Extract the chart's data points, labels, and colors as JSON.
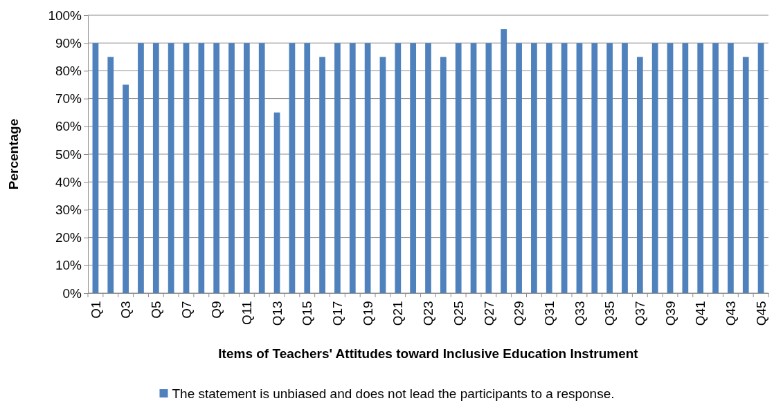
{
  "chart_data": {
    "type": "bar",
    "xlabel": "Items of Teachers' Attitudes toward Inclusive Education Instrument",
    "ylabel": "Percentage",
    "categories": [
      "Q1",
      null,
      "Q3",
      null,
      "Q5",
      null,
      "Q7",
      null,
      "Q9",
      null,
      "Q11",
      null,
      "Q13",
      null,
      "Q15",
      null,
      "Q17",
      null,
      "Q19",
      null,
      "Q21",
      null,
      "Q23",
      null,
      "Q25",
      null,
      "Q27",
      null,
      "Q29",
      null,
      "Q31",
      null,
      "Q33",
      null,
      "Q35",
      null,
      "Q37",
      null,
      "Q39",
      null,
      "Q41",
      null,
      "Q43",
      null,
      "Q45"
    ],
    "series": [
      {
        "name": "The statement is unbiased and does not lead the participants to a response.",
        "color": "#4f81bd",
        "values": [
          90,
          85,
          75,
          90,
          90,
          90,
          90,
          90,
          90,
          90,
          90,
          90,
          65,
          90,
          90,
          85,
          90,
          90,
          90,
          85,
          90,
          90,
          90,
          85,
          90,
          90,
          90,
          95,
          90,
          90,
          90,
          90,
          90,
          90,
          90,
          90,
          85,
          90,
          90,
          90,
          90,
          90,
          90,
          85,
          90
        ]
      }
    ],
    "ylim": [
      0,
      100
    ],
    "yticks": [
      {
        "value": 0,
        "label": "0%"
      },
      {
        "value": 10,
        "label": "10%"
      },
      {
        "value": 20,
        "label": "20%"
      },
      {
        "value": 30,
        "label": "30%"
      },
      {
        "value": 40,
        "label": "40%"
      },
      {
        "value": 50,
        "label": "50%"
      },
      {
        "value": 60,
        "label": "60%"
      },
      {
        "value": 70,
        "label": "70%"
      },
      {
        "value": 80,
        "label": "80%"
      },
      {
        "value": 90,
        "label": "90%"
      },
      {
        "value": 100,
        "label": "100%"
      }
    ],
    "grid": "y",
    "legend": "bottom"
  }
}
